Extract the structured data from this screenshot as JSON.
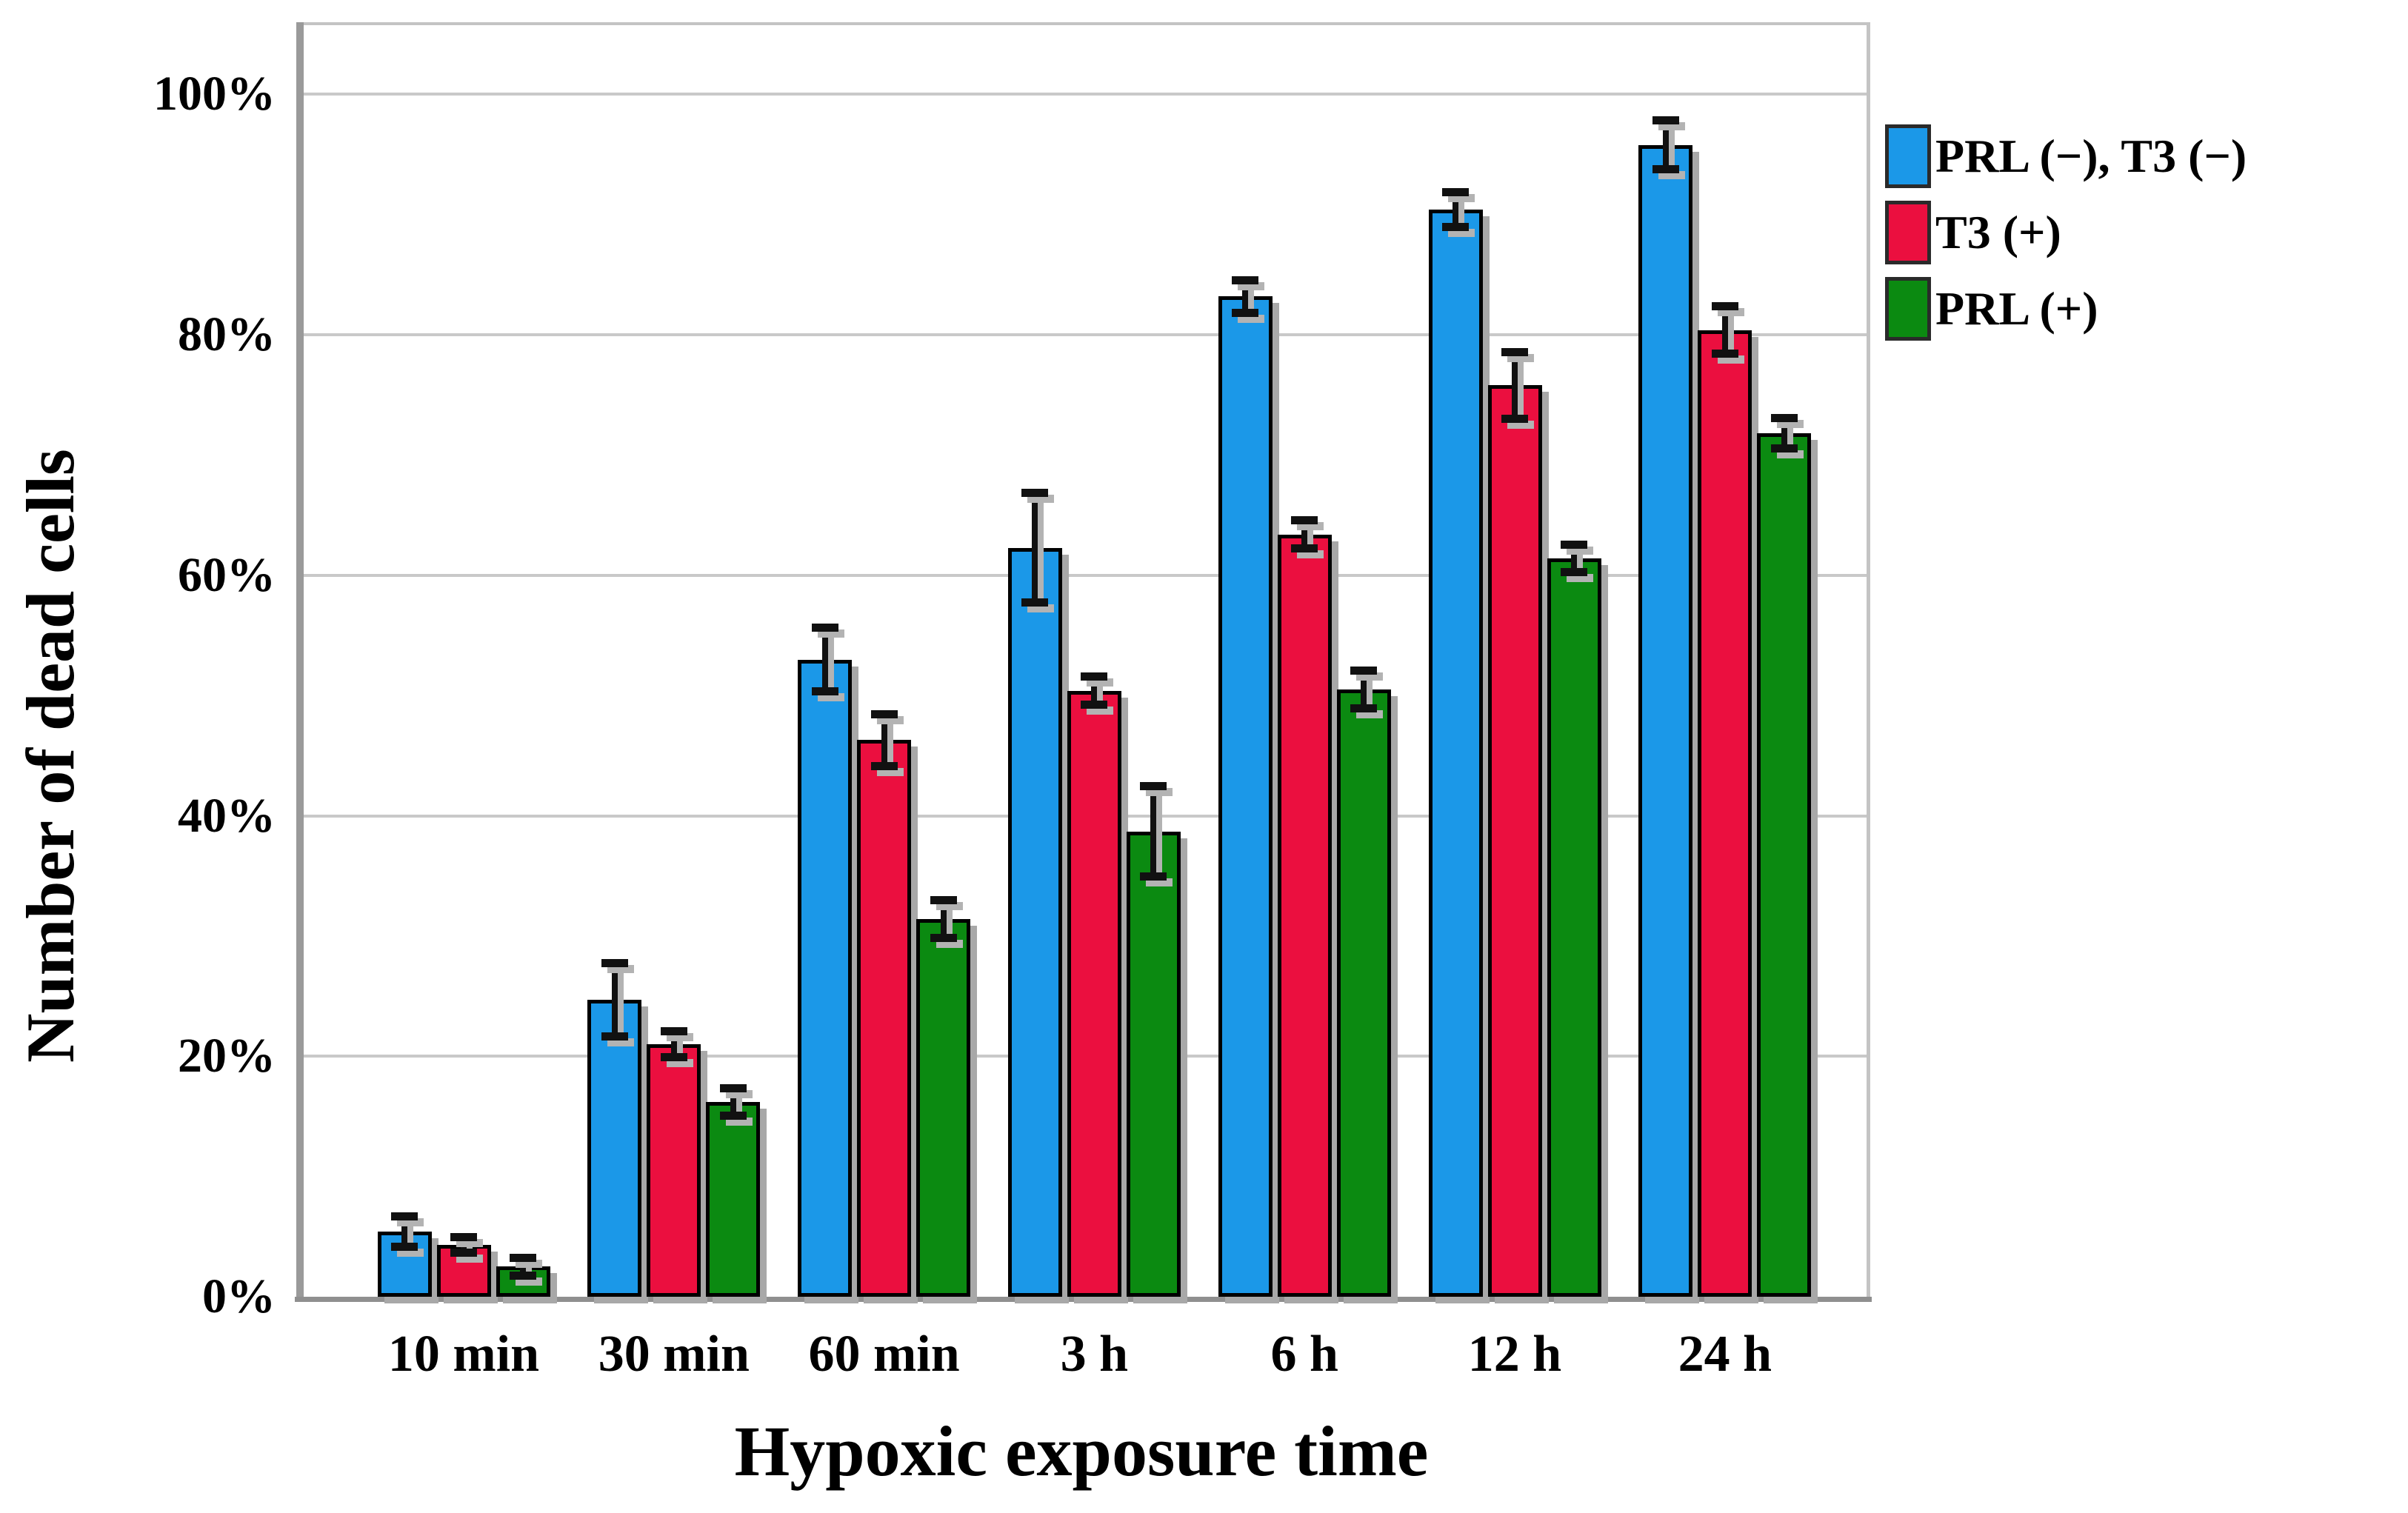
{
  "chart_data": {
    "type": "bar",
    "title": "",
    "xlabel": "Hypoxic exposure time",
    "ylabel": "Number of dead cells",
    "categories": [
      "10 min",
      "30 min",
      "60 min",
      "3 h",
      "6 h",
      "12 h",
      "24 h"
    ],
    "y_ticks": [
      {
        "value": 0,
        "label": "0%"
      },
      {
        "value": 20,
        "label": "20%"
      },
      {
        "value": 40,
        "label": "40%"
      },
      {
        "value": 60,
        "label": "60%"
      },
      {
        "value": 80,
        "label": "80%"
      },
      {
        "value": 100,
        "label": "100%"
      }
    ],
    "ylim": [
      0,
      106
    ],
    "grid": "horizontal",
    "legend_position": "outside-top-right",
    "bar_unit": "% dead cells",
    "series": [
      {
        "name": "PRL (−), T3 (−)",
        "color": "#1B98E8",
        "values": [
          5.4,
          24.7,
          53.0,
          62.3,
          83.2,
          90.4,
          95.8
        ],
        "errors": [
          1.1,
          2.9,
          2.5,
          4.4,
          1.2,
          1.3,
          1.9
        ]
      },
      {
        "name": "T3 (+)",
        "color": "#EB0F3F",
        "values": [
          4.3,
          21.0,
          46.3,
          50.4,
          63.4,
          75.8,
          80.4
        ],
        "errors": [
          0.5,
          0.9,
          2.0,
          1.0,
          1.0,
          2.6,
          1.8
        ]
      },
      {
        "name": "PRL (+)",
        "color": "#0B8A11",
        "values": [
          2.5,
          16.2,
          31.4,
          38.7,
          50.5,
          61.4,
          71.8
        ],
        "errors": [
          0.6,
          1.0,
          1.4,
          3.6,
          1.4,
          1.0,
          1.1
        ]
      }
    ]
  }
}
